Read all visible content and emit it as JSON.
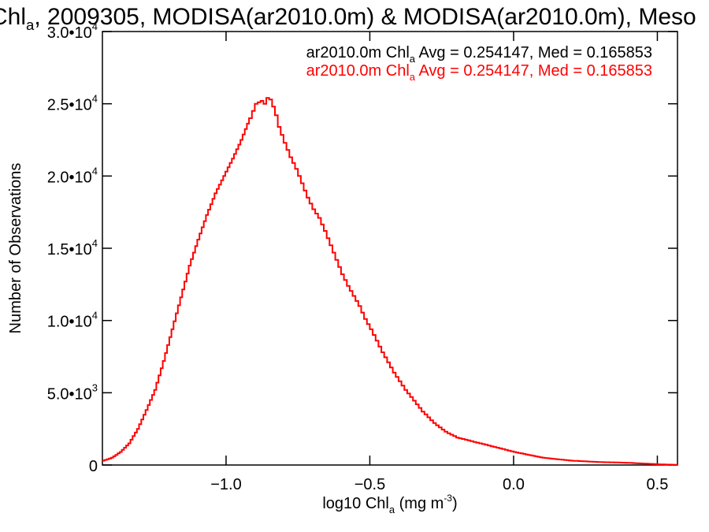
{
  "title": {
    "pre": "Chl",
    "sub": "a",
    "post": ", 2009305, MODISA(ar2010.0m) & MODISA(ar2010.0m), Meso"
  },
  "stats": [
    {
      "pre": "ar2010.0m Chl",
      "sub": "a",
      "post": " Avg = 0.254147, Med = 0.165853",
      "color": "#000000"
    },
    {
      "pre": "ar2010.0m Chl",
      "sub": "a",
      "post": " Avg = 0.254147, Med = 0.165853",
      "color": "#ff0000"
    }
  ],
  "colors": {
    "line": "#ff0000",
    "axis": "#000000",
    "background": "#ffffff"
  },
  "chart_data": {
    "type": "line",
    "xlabel": {
      "pre": "log10 Chl",
      "sub": "a",
      "post": " (mg m",
      "sup": "-3",
      "end": ")"
    },
    "ylabel": "Number of Observations",
    "xlim": [
      -1.43,
      0.57
    ],
    "ylim": [
      0,
      30000
    ],
    "xticks": [
      {
        "value": -1.0,
        "label": "−1.0"
      },
      {
        "value": -0.5,
        "label": "−0.5"
      },
      {
        "value": 0.0,
        "label": "0.0"
      },
      {
        "value": 0.5,
        "label": "0.5"
      }
    ],
    "yticks": [
      {
        "value": 0,
        "mant": "0",
        "exp": ""
      },
      {
        "value": 5000,
        "mant": "5.0•10",
        "exp": "3"
      },
      {
        "value": 10000,
        "mant": "1.0•10",
        "exp": "4"
      },
      {
        "value": 15000,
        "mant": "1.5•10",
        "exp": "4"
      },
      {
        "value": 20000,
        "mant": "2.0•10",
        "exp": "4"
      },
      {
        "value": 25000,
        "mant": "2.5•10",
        "exp": "4"
      },
      {
        "value": 30000,
        "mant": "3.0•10",
        "exp": "4"
      }
    ],
    "series": [
      {
        "x": [
          -1.43,
          -1.4,
          -1.37,
          -1.34,
          -1.31,
          -1.28,
          -1.25,
          -1.22,
          -1.19,
          -1.16,
          -1.13,
          -1.1,
          -1.07,
          -1.04,
          -1.01,
          -0.98,
          -0.95,
          -0.92,
          -0.9,
          -0.88,
          -0.87,
          -0.86,
          -0.85,
          -0.84,
          -0.83,
          -0.82,
          -0.8,
          -0.78,
          -0.76,
          -0.74,
          -0.72,
          -0.7,
          -0.68,
          -0.66,
          -0.64,
          -0.62,
          -0.6,
          -0.58,
          -0.56,
          -0.54,
          -0.52,
          -0.5,
          -0.48,
          -0.46,
          -0.44,
          -0.42,
          -0.4,
          -0.38,
          -0.36,
          -0.34,
          -0.32,
          -0.3,
          -0.28,
          -0.26,
          -0.24,
          -0.22,
          -0.2,
          -0.18,
          -0.16,
          -0.14,
          -0.12,
          -0.1,
          -0.08,
          -0.06,
          -0.04,
          -0.02,
          0.0,
          0.05,
          0.1,
          0.15,
          0.2,
          0.25,
          0.3,
          0.35,
          0.4,
          0.45,
          0.5,
          0.55,
          0.57
        ],
        "y": [
          300,
          500,
          900,
          1500,
          2500,
          3800,
          5200,
          7200,
          9400,
          11600,
          13800,
          15600,
          17300,
          18800,
          20000,
          21200,
          22500,
          24000,
          25000,
          25200,
          25000,
          25400,
          25300,
          24800,
          24200,
          23400,
          22300,
          21300,
          20500,
          19500,
          18500,
          17700,
          17100,
          16200,
          15200,
          14200,
          13200,
          12400,
          11700,
          11000,
          10100,
          9400,
          8600,
          7800,
          7100,
          6400,
          5800,
          5200,
          4700,
          4200,
          3700,
          3300,
          2900,
          2600,
          2300,
          2100,
          1900,
          1800,
          1700,
          1600,
          1500,
          1400,
          1300,
          1200,
          1100,
          1000,
          900,
          700,
          500,
          400,
          300,
          250,
          200,
          180,
          150,
          100,
          50,
          20,
          0
        ]
      }
    ]
  }
}
